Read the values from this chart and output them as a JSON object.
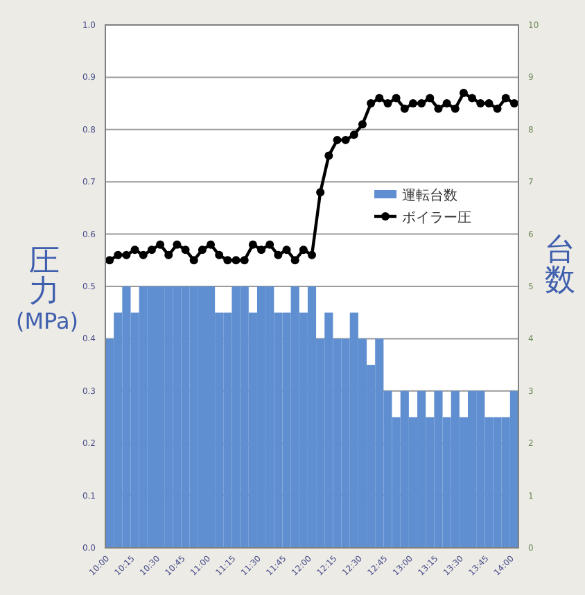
{
  "chart_data": {
    "type": "bar",
    "categories": [
      "10:00",
      null,
      null,
      "10:15",
      null,
      null,
      "10:30",
      null,
      null,
      "10:45",
      null,
      null,
      "11:00",
      null,
      null,
      "11:15",
      null,
      null,
      "11:30",
      null,
      null,
      "11:45",
      null,
      null,
      "12:00",
      null,
      null,
      "12:15",
      null,
      null,
      "12:30",
      null,
      null,
      "12:45",
      null,
      null,
      "13:00",
      null,
      null,
      "13:15",
      null,
      null,
      "13:30",
      null,
      null,
      "13:45",
      null,
      null,
      "14:00"
    ],
    "series": [
      {
        "name": "運転台数",
        "axis": "y2",
        "color": "#5f8fd0",
        "values": [
          4,
          4.5,
          5,
          4.5,
          5,
          5,
          5,
          5,
          5,
          5,
          5,
          5,
          5,
          4.5,
          4.5,
          5,
          5,
          4.5,
          5,
          5,
          4.5,
          4.5,
          5,
          4.5,
          5,
          4,
          4.5,
          4,
          4,
          4.5,
          4,
          3.5,
          4,
          3,
          2.5,
          3,
          2.5,
          3,
          2.5,
          3,
          2.5,
          3,
          2.5,
          3,
          3,
          2.5,
          2.5,
          2.5,
          3
        ]
      },
      {
        "name": "ボイラー圧",
        "type": "line",
        "color": "#000000",
        "marker": "circle",
        "values": [
          0.55,
          0.56,
          0.56,
          0.57,
          0.56,
          0.57,
          0.58,
          0.56,
          0.58,
          0.57,
          0.55,
          0.57,
          0.58,
          0.56,
          0.55,
          0.55,
          0.55,
          0.58,
          0.57,
          0.58,
          0.56,
          0.57,
          0.55,
          0.57,
          0.56,
          0.68,
          0.75,
          0.78,
          0.78,
          0.79,
          0.81,
          0.85,
          0.86,
          0.85,
          0.86,
          0.84,
          0.85,
          0.85,
          0.86,
          0.84,
          0.85,
          0.84,
          0.87,
          0.86,
          0.85,
          0.85,
          0.84,
          0.86,
          0.85
        ]
      }
    ],
    "ylabel": "圧力(MPa)",
    "y2label": "台数",
    "ylim": [
      0,
      1
    ],
    "yticks": [
      {
        "value": 0,
        "label": "0.0"
      },
      0.1,
      0.2,
      0.3,
      0.4,
      0.5,
      0.6,
      0.7,
      0.8,
      0.9,
      {
        "value": 1,
        "label": "1.0"
      }
    ],
    "y2lim": [
      0,
      10
    ],
    "y2ticks": [
      0,
      1,
      2,
      3,
      4,
      5,
      6,
      7,
      8,
      9,
      10
    ],
    "grid": "y",
    "legend": "right"
  }
}
